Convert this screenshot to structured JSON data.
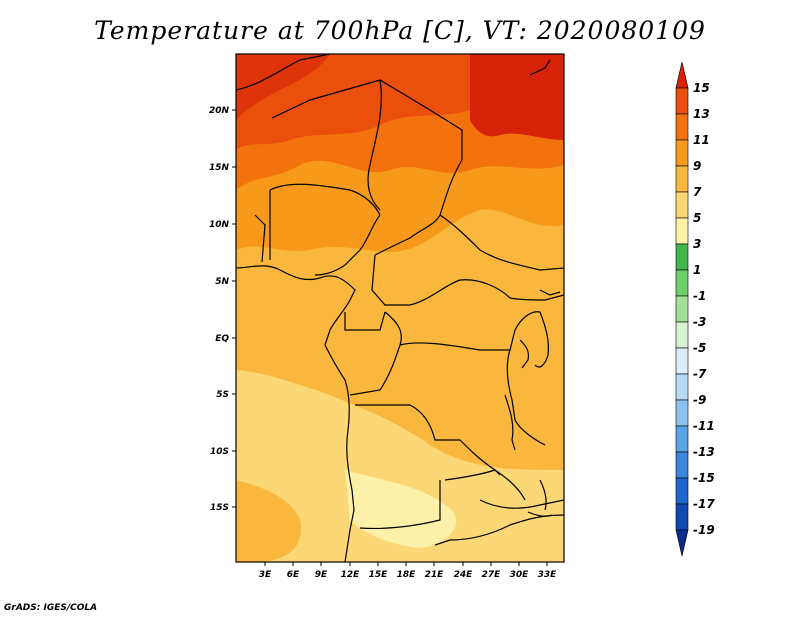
{
  "title": "Temperature at 700hPa [C], VT: 2020080109",
  "footer": "GrADS: IGES/COLA",
  "map": {
    "lon_labels": [
      "3E",
      "6E",
      "9E",
      "12E",
      "15E",
      "18E",
      "21E",
      "24E",
      "27E",
      "30E",
      "33E"
    ],
    "lat_labels": [
      "20N",
      "15N",
      "10N",
      "5N",
      "EQ",
      "5S",
      "10S",
      "15S"
    ]
  },
  "colorbar": {
    "labels": [
      "15",
      "13",
      "11",
      "9",
      "7",
      "5",
      "3",
      "1",
      "-1",
      "-3",
      "-5",
      "-7",
      "-9",
      "-11",
      "-13",
      "-15",
      "-17",
      "-19"
    ],
    "colors": [
      "#d7220a",
      "#ea4f0b",
      "#f4720e",
      "#f79a1c",
      "#f9b83d",
      "#fcd775",
      "#fdf0a8",
      "#41b64a",
      "#6fcf6a",
      "#a5e09a",
      "#d8f2d2",
      "#dcecf8",
      "#b7daf5",
      "#8cc2ee",
      "#5aa3e5",
      "#3b85dc",
      "#1f66cf",
      "#1348b4",
      "#0b2a8c"
    ]
  }
}
